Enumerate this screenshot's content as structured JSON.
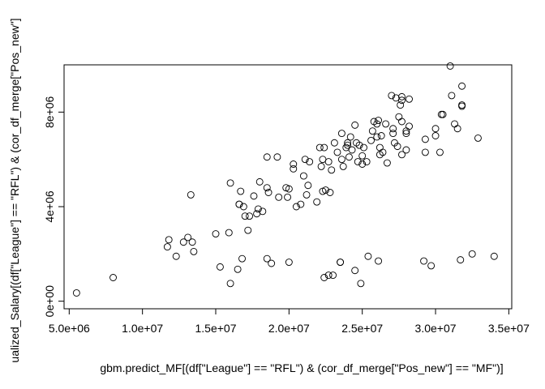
{
  "chart_data": {
    "type": "scatter",
    "xlabel": "gbm.predict_MF[(df[\"League\"] == \"RFL\") & (cor_df_merge[\"Pos_new\"] == \"MF\")]",
    "ylabel": "ualized_Salary[(df[\"League\"] == \"RFL\") & (cor_df_merge[\"Pos_new\"]",
    "x_ticks": [
      5000000,
      10000000,
      15000000,
      20000000,
      25000000,
      30000000,
      35000000
    ],
    "x_tick_labels": [
      "5.0e+06",
      "1.0e+07",
      "1.5e+07",
      "2.0e+07",
      "2.5e+07",
      "3.0e+07",
      "3.5e+07"
    ],
    "y_ticks": [
      0,
      4000000,
      8000000
    ],
    "y_tick_labels": [
      "0e+00",
      "4e+06",
      "8e+06"
    ],
    "xlim": [
      4650000,
      35200000
    ],
    "ylim": [
      -320000,
      10000000
    ],
    "grid": false,
    "legend": "none",
    "points": [
      [
        5500000,
        350000
      ],
      [
        8000000,
        1000000
      ],
      [
        11700000,
        2300000
      ],
      [
        11800000,
        2600000
      ],
      [
        12300000,
        1900000
      ],
      [
        12800000,
        2500000
      ],
      [
        13100000,
        2700000
      ],
      [
        13300000,
        4500000
      ],
      [
        13400000,
        2500000
      ],
      [
        13500000,
        2100000
      ],
      [
        15000000,
        2850000
      ],
      [
        15300000,
        1450000
      ],
      [
        15900000,
        2900000
      ],
      [
        16000000,
        750000
      ],
      [
        16000000,
        5000000
      ],
      [
        16500000,
        1350000
      ],
      [
        16600000,
        4100000
      ],
      [
        16600000,
        4100000
      ],
      [
        16700000,
        4650000
      ],
      [
        16800000,
        1800000
      ],
      [
        16900000,
        4000000
      ],
      [
        17000000,
        3600000
      ],
      [
        17200000,
        3000000
      ],
      [
        17300000,
        3600000
      ],
      [
        17600000,
        4450000
      ],
      [
        17800000,
        3700000
      ],
      [
        17900000,
        3900000
      ],
      [
        18000000,
        5050000
      ],
      [
        18200000,
        3800000
      ],
      [
        18500000,
        1800000
      ],
      [
        18500000,
        6100000
      ],
      [
        18500000,
        4800000
      ],
      [
        18600000,
        4600000
      ],
      [
        18800000,
        1600000
      ],
      [
        19200000,
        6100000
      ],
      [
        19300000,
        4400000
      ],
      [
        19800000,
        4800000
      ],
      [
        19900000,
        4400000
      ],
      [
        20000000,
        1650000
      ],
      [
        20000000,
        4750000
      ],
      [
        20300000,
        5600000
      ],
      [
        20300000,
        5800000
      ],
      [
        20500000,
        4000000
      ],
      [
        20800000,
        4100000
      ],
      [
        21000000,
        5300000
      ],
      [
        21100000,
        6000000
      ],
      [
        21200000,
        4500000
      ],
      [
        21300000,
        4900000
      ],
      [
        21400000,
        5900000
      ],
      [
        21900000,
        4200000
      ],
      [
        22100000,
        6500000
      ],
      [
        22200000,
        5700000
      ],
      [
        22300000,
        6000000
      ],
      [
        22300000,
        4650000
      ],
      [
        22400000,
        6500000
      ],
      [
        22400000,
        1000000
      ],
      [
        22500000,
        4700000
      ],
      [
        22700000,
        5900000
      ],
      [
        22700000,
        1100000
      ],
      [
        22800000,
        4600000
      ],
      [
        22900000,
        5550000
      ],
      [
        23000000,
        1100000
      ],
      [
        23100000,
        6700000
      ],
      [
        23300000,
        6300000
      ],
      [
        23500000,
        1650000
      ],
      [
        23500000,
        1650000
      ],
      [
        23600000,
        7100000
      ],
      [
        23600000,
        6000000
      ],
      [
        23700000,
        5700000
      ],
      [
        23900000,
        6500000
      ],
      [
        24000000,
        6700000
      ],
      [
        24000000,
        6600000
      ],
      [
        24100000,
        6100000
      ],
      [
        24200000,
        6950000
      ],
      [
        24300000,
        6400000
      ],
      [
        24500000,
        7450000
      ],
      [
        24500000,
        1300000
      ],
      [
        24600000,
        6700000
      ],
      [
        24700000,
        5900000
      ],
      [
        24800000,
        6600000
      ],
      [
        24900000,
        750000
      ],
      [
        25000000,
        5800000
      ],
      [
        25000000,
        6150000
      ],
      [
        25100000,
        6500000
      ],
      [
        25300000,
        5900000
      ],
      [
        25400000,
        1900000
      ],
      [
        25600000,
        6800000
      ],
      [
        25700000,
        7200000
      ],
      [
        25800000,
        7600000
      ],
      [
        26000000,
        6950000
      ],
      [
        26000000,
        7500000
      ],
      [
        26100000,
        7650000
      ],
      [
        26100000,
        1700000
      ],
      [
        26200000,
        6200000
      ],
      [
        26200000,
        6500000
      ],
      [
        26300000,
        7000000
      ],
      [
        26400000,
        6300000
      ],
      [
        26600000,
        7500000
      ],
      [
        26700000,
        5850000
      ],
      [
        27000000,
        8700000
      ],
      [
        27100000,
        7300000
      ],
      [
        27100000,
        7100000
      ],
      [
        27200000,
        6700000
      ],
      [
        27300000,
        8600000
      ],
      [
        27400000,
        6550000
      ],
      [
        27500000,
        7800000
      ],
      [
        27600000,
        8300000
      ],
      [
        27700000,
        8500000
      ],
      [
        27700000,
        6200000
      ],
      [
        27700000,
        7600000
      ],
      [
        27700000,
        8650000
      ],
      [
        28000000,
        6400000
      ],
      [
        28000000,
        7200000
      ],
      [
        28000000,
        7100000
      ],
      [
        28200000,
        7400000
      ],
      [
        28200000,
        8550000
      ],
      [
        29200000,
        1700000
      ],
      [
        29300000,
        6850000
      ],
      [
        29300000,
        6300000
      ],
      [
        29700000,
        1500000
      ],
      [
        30000000,
        7300000
      ],
      [
        30000000,
        7000000
      ],
      [
        30300000,
        6300000
      ],
      [
        30400000,
        7900000
      ],
      [
        30500000,
        7900000
      ],
      [
        31000000,
        9950000
      ],
      [
        31100000,
        8700000
      ],
      [
        31300000,
        7500000
      ],
      [
        31500000,
        7300000
      ],
      [
        31700000,
        1750000
      ],
      [
        31800000,
        9100000
      ],
      [
        31800000,
        8300000
      ],
      [
        31800000,
        8250000
      ],
      [
        32500000,
        2000000
      ],
      [
        32900000,
        6900000
      ],
      [
        34000000,
        1900000
      ]
    ]
  }
}
